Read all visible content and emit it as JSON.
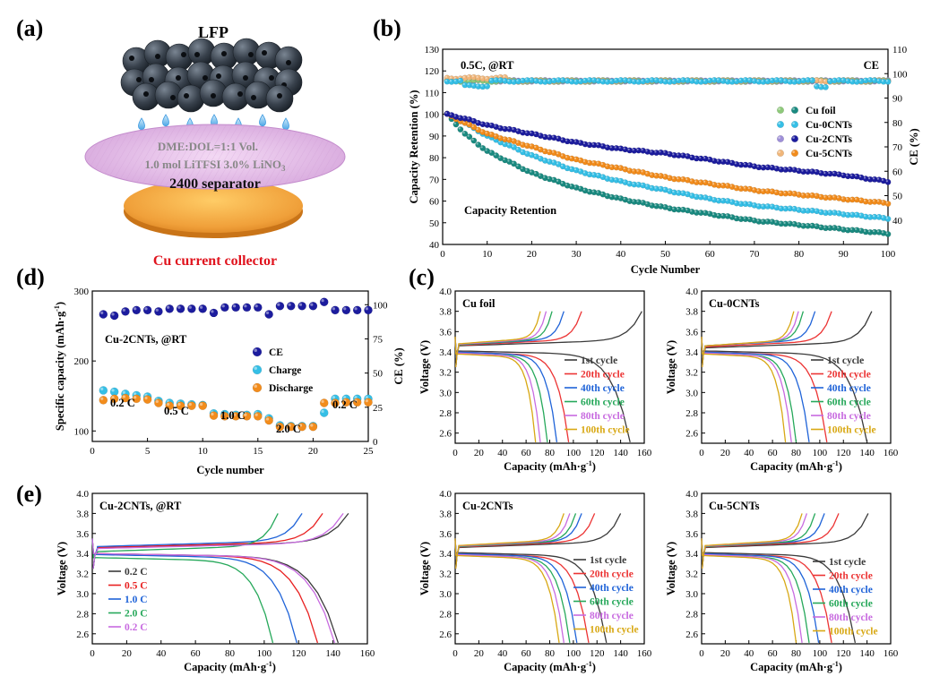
{
  "colors": {
    "cu_foil": "#1a8a80",
    "cu_0cnt": "#35bfe6",
    "cu_2cnt": "#1c1c9e",
    "cu_5cnt": "#f28c1c",
    "ce_light_foil": "#8ec97a",
    "ce_light_2cnt": "#9e8fd8",
    "ce_light_5cnt": "#f0b67a",
    "cyc1": "#3a3a3a",
    "cyc20": "#ec3434",
    "cyc40": "#1f63d8",
    "cyc60": "#26a85a",
    "cyc80": "#c86be0",
    "cyc100": "#d8a814",
    "cap_label": "#e0141e",
    "red": "#e82020"
  },
  "panels": {
    "a": {
      "label": "(a)",
      "lfp": "LFP",
      "electrolyte_line1": "DME:DOL=1:1 Vol.",
      "electrolyte_line2": "1.0 mol LiTFSI    3.0% LiNO",
      "electrolyte_sub": "3",
      "separator": "2400 separator",
      "collector": "Cu current collector"
    },
    "b": {
      "label": "(b)"
    },
    "c": {
      "label": "(c)"
    },
    "d": {
      "label": "(d)"
    },
    "e": {
      "label": "(e)"
    }
  },
  "chart_data": [
    {
      "id": "b",
      "type": "scatter",
      "annotations": [
        "0.5C, @RT",
        "CE",
        "Capacity Retention"
      ],
      "xlabel": "Cycle Number",
      "ylabel": "Capacity Retention (%)",
      "ylabel_right": "CE (%)",
      "xlim": [
        0,
        100
      ],
      "ylim": [
        40,
        130
      ],
      "ylim_right": [
        30,
        110
      ],
      "xticks": [
        "0",
        "10",
        "20",
        "30",
        "40",
        "50",
        "60",
        "70",
        "80",
        "90",
        "100"
      ],
      "yticks": [
        "40",
        "50",
        "60",
        "70",
        "80",
        "90",
        "100",
        "110",
        "120",
        "130"
      ],
      "yticks_right": [
        "40",
        "50",
        "60",
        "70",
        "80",
        "90",
        "100",
        "110"
      ],
      "legend": [
        "Cu foil",
        "Cu-0CNTs",
        "Cu-2CNTs",
        "Cu-5CNTs"
      ],
      "legend_position": "center-right",
      "retention_anchors": {
        "Cu foil": [
          [
            1,
            100
          ],
          [
            5,
            91
          ],
          [
            10,
            83
          ],
          [
            20,
            73
          ],
          [
            30,
            66
          ],
          [
            40,
            61
          ],
          [
            50,
            57
          ],
          [
            60,
            54
          ],
          [
            70,
            51
          ],
          [
            80,
            49
          ],
          [
            90,
            47
          ],
          [
            100,
            45
          ]
        ],
        "Cu-0CNTs": [
          [
            1,
            100
          ],
          [
            5,
            96
          ],
          [
            10,
            90
          ],
          [
            20,
            81
          ],
          [
            30,
            74
          ],
          [
            40,
            69
          ],
          [
            50,
            65
          ],
          [
            60,
            61
          ],
          [
            70,
            58
          ],
          [
            80,
            56
          ],
          [
            90,
            54
          ],
          [
            100,
            52
          ]
        ],
        "Cu-2CNTs": [
          [
            1,
            100
          ],
          [
            5,
            98
          ],
          [
            10,
            95
          ],
          [
            20,
            91
          ],
          [
            30,
            87
          ],
          [
            40,
            84
          ],
          [
            50,
            82
          ],
          [
            60,
            79
          ],
          [
            70,
            76
          ],
          [
            80,
            74
          ],
          [
            90,
            72
          ],
          [
            100,
            69
          ]
        ],
        "Cu-5CNTs": [
          [
            1,
            100
          ],
          [
            5,
            96
          ],
          [
            10,
            91
          ],
          [
            20,
            85
          ],
          [
            30,
            79
          ],
          [
            40,
            75
          ],
          [
            50,
            71
          ],
          [
            60,
            68
          ],
          [
            70,
            65
          ],
          [
            80,
            63
          ],
          [
            90,
            61
          ],
          [
            100,
            59
          ]
        ]
      },
      "ce_level": 97
    },
    {
      "id": "d",
      "type": "scatter",
      "annotations": [
        "Cu-2CNTs, @RT",
        "0.2 C",
        "0.5 C",
        "1.0 C",
        "2.0 C",
        "0.2 C"
      ],
      "xlabel": "Cycle number",
      "ylabel": "Specific capacity (mAh·g",
      "ylabel_sup": "-1",
      "ylabel_right": "CE (%)",
      "xlim": [
        0,
        25
      ],
      "ylim": [
        85,
        300
      ],
      "ylim_right": [
        0,
        110
      ],
      "xticks": [
        "0",
        "5",
        "10",
        "15",
        "20",
        "25"
      ],
      "yticks": [
        "100",
        "200",
        "300"
      ],
      "yticks_right": [
        "0",
        "25",
        "50",
        "75",
        "100"
      ],
      "legend": [
        "CE",
        "Charge",
        "Discharge"
      ],
      "legend_position": "center-right",
      "x": [
        1,
        2,
        3,
        4,
        5,
        6,
        7,
        8,
        9,
        10,
        11,
        12,
        13,
        14,
        15,
        16,
        17,
        18,
        19,
        20,
        21,
        22,
        23,
        24,
        25
      ],
      "series": [
        {
          "name": "CE",
          "values": [
            93,
            92,
            95,
            96,
            96,
            95,
            97,
            97,
            97,
            97,
            94,
            98,
            98,
            98,
            98,
            93,
            99,
            99,
            99,
            99,
            102,
            96,
            96,
            96,
            96
          ]
        },
        {
          "name": "Charge",
          "values": [
            158,
            156,
            153,
            151,
            149,
            143,
            140,
            139,
            138,
            137,
            125,
            124,
            123,
            123,
            124,
            118,
            108,
            107,
            107,
            107,
            126,
            146,
            146,
            146,
            146
          ]
        },
        {
          "name": "Discharge",
          "values": [
            144,
            146,
            147,
            146,
            145,
            140,
            136,
            136,
            136,
            136,
            122,
            121,
            121,
            121,
            121,
            115,
            106,
            106,
            106,
            106,
            140,
            140,
            141,
            141,
            141
          ]
        }
      ]
    },
    {
      "id": "c1",
      "type": "line",
      "annotations": [
        "Cu foil"
      ],
      "xlabel": "Capacity (mAh·g",
      "xlabel_sup": "-1",
      "ylabel": "Voltage (V)",
      "xlim": [
        0,
        160
      ],
      "ylim": [
        2.5,
        4.0
      ],
      "xticks": [
        "0",
        "20",
        "40",
        "60",
        "80",
        "100",
        "120",
        "140",
        "160"
      ],
      "yticks": [
        "2.6",
        "2.8",
        "3.0",
        "3.2",
        "3.4",
        "3.6",
        "3.8",
        "4.0"
      ],
      "legend": [
        "1st cycle",
        "20th  cycle",
        "40th  cycle",
        "60th  cycle",
        "80th  cycle",
        "100th  cycle"
      ],
      "series": [
        {
          "name": "1st cycle",
          "charge": 158,
          "discharge": 148
        },
        {
          "name": "20th  cycle",
          "charge": 107,
          "discharge": 96
        },
        {
          "name": "40th  cycle",
          "charge": 92,
          "discharge": 86
        },
        {
          "name": "60th  cycle",
          "charge": 82,
          "discharge": 78
        },
        {
          "name": "80th  cycle",
          "charge": 77,
          "discharge": 72
        },
        {
          "name": "100th  cycle",
          "charge": 72,
          "discharge": 68
        }
      ]
    },
    {
      "id": "c2",
      "type": "line",
      "annotations": [
        "Cu-0CNTs"
      ],
      "xlabel": "Capacity (mAh·g",
      "xlabel_sup": "-1",
      "ylabel": "Voltage (V)",
      "xlim": [
        0,
        160
      ],
      "ylim": [
        2.5,
        4.0
      ],
      "xticks": [
        "0",
        "20",
        "40",
        "60",
        "80",
        "100",
        "120",
        "140",
        "160"
      ],
      "yticks": [
        "2.6",
        "2.8",
        "3.0",
        "3.2",
        "3.4",
        "3.6",
        "3.8",
        "4.0"
      ],
      "legend": [
        "1st cycle",
        "20th  cycle",
        "40th  cycle",
        "60th  cycle",
        "80th  cycle",
        "100th  cycle"
      ],
      "series": [
        {
          "name": "1st cycle",
          "charge": 144,
          "discharge": 140
        },
        {
          "name": "20th  cycle",
          "charge": 110,
          "discharge": 106
        },
        {
          "name": "40th  cycle",
          "charge": 96,
          "discharge": 91
        },
        {
          "name": "60th  cycle",
          "charge": 86,
          "discharge": 80
        },
        {
          "name": "80th  cycle",
          "charge": 82,
          "discharge": 76
        },
        {
          "name": "100th  cycle",
          "charge": 78,
          "discharge": 71
        }
      ]
    },
    {
      "id": "e",
      "type": "line",
      "annotations": [
        "Cu-2CNTs, @RT"
      ],
      "xlabel": "Capacity (mAh·g",
      "xlabel_sup": "-1",
      "ylabel": "Voltage (V)",
      "xlim": [
        0,
        160
      ],
      "ylim": [
        2.5,
        4.0
      ],
      "xticks": [
        "0",
        "20",
        "40",
        "60",
        "80",
        "100",
        "120",
        "140",
        "160"
      ],
      "yticks": [
        "2.6",
        "2.8",
        "3.0",
        "3.2",
        "3.4",
        "3.6",
        "3.8",
        "4.0"
      ],
      "legend": [
        "0.2 C",
        "0.5 C",
        "1.0 C",
        "2.0 C",
        "0.2 C"
      ],
      "legend_position": "bottom-left",
      "series": [
        {
          "name": "0.2 C",
          "charge": 149,
          "discharge": 143
        },
        {
          "name": "0.5 C",
          "charge": 134,
          "discharge": 131
        },
        {
          "name": "1.0 C",
          "charge": 122,
          "discharge": 119
        },
        {
          "name": "2.0 C",
          "charge": 108,
          "discharge": 105
        },
        {
          "name": "0.2 C",
          "charge": 146,
          "discharge": 141
        }
      ]
    },
    {
      "id": "c3",
      "type": "line",
      "annotations": [
        "Cu-2CNTs"
      ],
      "xlabel": "Capacity (mAh·g",
      "xlabel_sup": "-1",
      "ylabel": "Voltage (V)",
      "xlim": [
        0,
        160
      ],
      "ylim": [
        2.5,
        4.0
      ],
      "xticks": [
        "0",
        "20",
        "40",
        "60",
        "80",
        "100",
        "120",
        "140",
        "160"
      ],
      "yticks": [
        "2.6",
        "2.8",
        "3.0",
        "3.2",
        "3.4",
        "3.6",
        "3.8",
        "4.0"
      ],
      "legend": [
        "1st cycle",
        "20th  cycle",
        "40th  cycle",
        "60th  cycle",
        "80th  cycle",
        "100th  cycle"
      ],
      "series": [
        {
          "name": "1st cycle",
          "charge": 140,
          "discharge": 128
        },
        {
          "name": "20th  cycle",
          "charge": 118,
          "discharge": 113
        },
        {
          "name": "40th  cycle",
          "charge": 107,
          "discharge": 103
        },
        {
          "name": "60th  cycle",
          "charge": 102,
          "discharge": 97
        },
        {
          "name": "80th  cycle",
          "charge": 97,
          "discharge": 92
        },
        {
          "name": "100th  cycle",
          "charge": 92,
          "discharge": 88
        }
      ]
    },
    {
      "id": "c4",
      "type": "line",
      "annotations": [
        "Cu-5CNTs"
      ],
      "xlabel": "Capacity (mAh·g",
      "xlabel_sup": "-1",
      "ylabel": "Voltage (V)",
      "xlim": [
        0,
        160
      ],
      "ylim": [
        2.5,
        4.0
      ],
      "xticks": [
        "0",
        "20",
        "40",
        "60",
        "80",
        "100",
        "120",
        "140",
        "160"
      ],
      "yticks": [
        "2.6",
        "2.8",
        "3.0",
        "3.2",
        "3.4",
        "3.6",
        "3.8",
        "4.0"
      ],
      "legend": [
        "1st cycle",
        "20th  cycle",
        "40th  cycle",
        "60th  cycle",
        "80th  cycle",
        "100th  cycle"
      ],
      "series": [
        {
          "name": "1st cycle",
          "charge": 141,
          "discharge": 130
        },
        {
          "name": "20th  cycle",
          "charge": 116,
          "discharge": 110
        },
        {
          "name": "40th  cycle",
          "charge": 104,
          "discharge": 99
        },
        {
          "name": "60th  cycle",
          "charge": 96,
          "discharge": 91
        },
        {
          "name": "80th  cycle",
          "charge": 89,
          "discharge": 85
        },
        {
          "name": "100th  cycle",
          "charge": 85,
          "discharge": 80
        }
      ]
    }
  ]
}
